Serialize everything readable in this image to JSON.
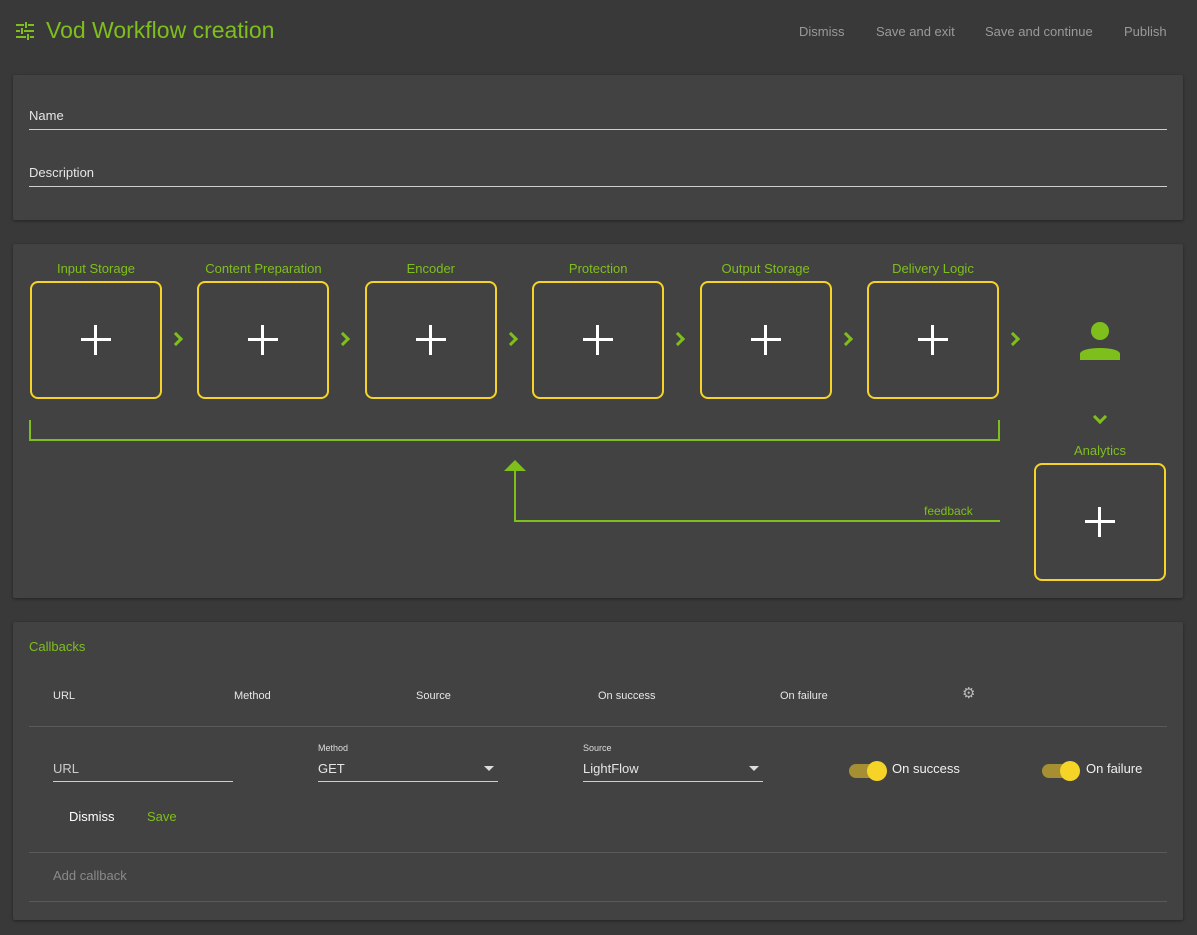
{
  "header": {
    "title": "Vod Workflow creation",
    "icon": "tune-icon",
    "actions": [
      "Dismiss",
      "Save and exit",
      "Save and continue",
      "Publish"
    ]
  },
  "form": {
    "name_label": "Name",
    "description_label": "Description"
  },
  "workflow": {
    "stages": [
      "Input Storage",
      "Content Preparation",
      "Encoder",
      "Protection",
      "Output Storage",
      "Delivery Logic"
    ],
    "analytics_label": "Analytics",
    "feedback_label": "feedback",
    "user_icon": "person-icon"
  },
  "callbacks": {
    "title": "Callbacks",
    "columns": [
      "URL",
      "Method",
      "Source",
      "On success",
      "On failure"
    ],
    "new": {
      "url_placeholder": "URL",
      "method_label": "Method",
      "method_value": "GET",
      "source_label": "Source",
      "source_value": "LightFlow",
      "on_success_label": "On success",
      "on_success": true,
      "on_failure_label": "On failure",
      "on_failure": true
    },
    "dismiss": "Dismiss",
    "save": "Save",
    "add": "Add callback"
  },
  "colors": {
    "accent": "#7fbf1c",
    "stage_border": "#f5d327",
    "background": "#393939",
    "card": "#424242"
  }
}
